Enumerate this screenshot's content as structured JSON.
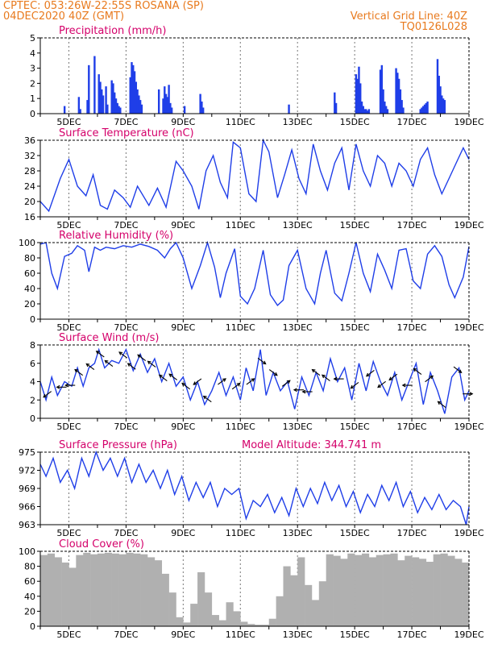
{
  "header": {
    "title_left": "CPTEC:   053:26W-22:55S   ROSANA (SP)",
    "date_left": "04DEC2020 40Z (GMT)",
    "grid_right": "Vertical Grid Line: 40Z",
    "code_right": "TQ0126L028"
  },
  "colors": {
    "header": "#e87a1e",
    "panel_title": "#d4006a",
    "series": "#1f3ee8",
    "cloud": "#b0b0b0",
    "arrows": "#000000"
  },
  "x_tick_labels": [
    "5DEC",
    "7DEC",
    "9DEC",
    "11DEC",
    "13DEC",
    "15DEC",
    "17DEC",
    "19DEC"
  ],
  "chart_data": [
    {
      "type": "bar",
      "title": "Precipitation (mm/h)",
      "ylim": [
        0,
        5
      ],
      "yticks": [
        "0",
        "1",
        "2",
        "3",
        "4",
        "5"
      ],
      "x": [
        4.85,
        5.35,
        5.4,
        5.65,
        5.7,
        5.9,
        6.05,
        6.1,
        6.15,
        6.2,
        6.3,
        6.35,
        6.5,
        6.55,
        6.6,
        6.65,
        6.7,
        6.75,
        6.8,
        7.15,
        7.2,
        7.25,
        7.3,
        7.35,
        7.4,
        7.45,
        7.5,
        7.55,
        8.15,
        8.3,
        8.35,
        8.4,
        8.45,
        8.5,
        8.55,
        8.6,
        9.05,
        9.6,
        9.65,
        9.7,
        12.7,
        14.3,
        14.35,
        15.05,
        15.1,
        15.15,
        15.2,
        15.25,
        15.3,
        15.35,
        15.4,
        15.45,
        15.5,
        15.9,
        15.95,
        16.0,
        16.05,
        16.1,
        16.15,
        16.45,
        16.5,
        16.55,
        16.6,
        16.65,
        16.7,
        17.3,
        17.35,
        17.4,
        17.45,
        17.5,
        17.55,
        17.9,
        17.95,
        18.0,
        18.05,
        18.1,
        18.15
      ],
      "values": [
        0.5,
        1.1,
        0.3,
        0.9,
        3.2,
        3.8,
        2.6,
        2.1,
        1.6,
        1.2,
        1.8,
        0.6,
        2.2,
        2.0,
        1.4,
        1.0,
        0.7,
        0.5,
        0.4,
        2.4,
        3.4,
        3.2,
        2.8,
        2.1,
        1.6,
        1.2,
        0.9,
        0.6,
        1.6,
        1.0,
        1.8,
        1.3,
        1.1,
        1.9,
        0.7,
        0.4,
        0.5,
        1.3,
        0.8,
        0.4,
        0.6,
        1.4,
        0.7,
        2.6,
        2.3,
        3.1,
        2.0,
        0.8,
        0.5,
        0.3,
        0.3,
        0.2,
        0.3,
        2.9,
        3.2,
        1.6,
        0.8,
        0.5,
        0.3,
        3.0,
        2.7,
        2.3,
        1.6,
        0.9,
        0.4,
        0.3,
        0.4,
        0.5,
        0.6,
        0.7,
        0.8,
        3.6,
        2.5,
        1.8,
        1.2,
        1.0,
        0.9
      ]
    },
    {
      "type": "line",
      "title": "Surface Temperature (nC)",
      "ylim": [
        16,
        36
      ],
      "yticks": [
        "16",
        "20",
        "24",
        "28",
        "32",
        "36"
      ],
      "series": [
        {
          "x": [
            4.0,
            4.3,
            4.7,
            5.0,
            5.3,
            5.6,
            5.85,
            6.1,
            6.35,
            6.6,
            6.9,
            7.15,
            7.4,
            7.8,
            8.1,
            8.4,
            8.75,
            9.0,
            9.3,
            9.55,
            9.8,
            10.05,
            10.3,
            10.55,
            10.75,
            11.0,
            11.3,
            11.55,
            11.8,
            12.0,
            12.3,
            12.55,
            12.8,
            13.05,
            13.3,
            13.55,
            13.8,
            14.05,
            14.3,
            14.55,
            14.8,
            15.05,
            15.3,
            15.55,
            15.8,
            16.05,
            16.3,
            16.55,
            16.8,
            17.05,
            17.3,
            17.55,
            17.8,
            18.05,
            18.3,
            18.55,
            18.8,
            19.0
          ],
          "y": [
            20,
            17.5,
            26,
            31,
            24,
            21.5,
            27,
            19,
            18,
            23,
            21,
            18.5,
            24,
            19,
            23.5,
            18.5,
            30.5,
            28,
            24,
            18,
            28,
            32,
            25,
            21,
            35.5,
            34,
            22,
            20,
            36,
            33,
            21,
            27,
            33.5,
            26,
            22,
            35,
            28,
            23,
            30,
            34,
            23,
            35,
            28,
            24,
            32,
            30,
            24,
            30,
            28,
            24,
            31,
            34,
            27,
            22,
            26,
            30,
            34,
            31
          ]
        }
      ]
    },
    {
      "type": "line",
      "title": "Relative Humidity (%)",
      "ylim": [
        0,
        100
      ],
      "yticks": [
        "0",
        "20",
        "40",
        "60",
        "80",
        "100"
      ],
      "series": [
        {
          "x": [
            4.0,
            4.2,
            4.4,
            4.6,
            4.85,
            5.1,
            5.3,
            5.55,
            5.7,
            5.9,
            6.1,
            6.3,
            6.6,
            6.9,
            7.2,
            7.5,
            7.8,
            8.1,
            8.35,
            8.55,
            8.75,
            9.0,
            9.3,
            9.6,
            9.85,
            10.1,
            10.3,
            10.5,
            10.8,
            11.0,
            11.25,
            11.5,
            11.8,
            12.05,
            12.3,
            12.5,
            12.7,
            13.0,
            13.3,
            13.6,
            13.8,
            14.0,
            14.3,
            14.55,
            14.8,
            15.05,
            15.3,
            15.55,
            15.8,
            16.05,
            16.3,
            16.55,
            16.8,
            17.05,
            17.3,
            17.55,
            17.8,
            18.05,
            18.3,
            18.5,
            18.8,
            19.0
          ],
          "y": [
            98,
            100,
            60,
            40,
            82,
            86,
            96,
            90,
            62,
            94,
            90,
            94,
            92,
            96,
            94,
            98,
            95,
            90,
            80,
            92,
            100,
            80,
            40,
            70,
            100,
            68,
            28,
            60,
            92,
            30,
            20,
            40,
            90,
            32,
            18,
            25,
            70,
            90,
            40,
            20,
            60,
            90,
            34,
            24,
            60,
            100,
            60,
            36,
            85,
            64,
            40,
            90,
            92,
            50,
            40,
            85,
            96,
            82,
            45,
            28,
            55,
            95
          ]
        }
      ]
    },
    {
      "type": "line",
      "title": "Surface Wind (m/s)",
      "ylim": [
        0,
        8
      ],
      "yticks": [
        "0",
        "2",
        "4",
        "6",
        "8"
      ],
      "series": [
        {
          "x": [
            4.0,
            4.2,
            4.4,
            4.6,
            4.85,
            5.1,
            5.3,
            5.5,
            5.7,
            5.9,
            6.05,
            6.25,
            6.5,
            6.75,
            7.0,
            7.25,
            7.5,
            7.75,
            8.0,
            8.25,
            8.5,
            8.75,
            9.0,
            9.25,
            9.5,
            9.75,
            10.0,
            10.25,
            10.5,
            10.75,
            11.0,
            11.2,
            11.45,
            11.7,
            11.9,
            12.15,
            12.4,
            12.65,
            12.9,
            13.15,
            13.4,
            13.65,
            13.9,
            14.15,
            14.4,
            14.65,
            14.9,
            15.15,
            15.4,
            15.65,
            15.9,
            16.15,
            16.4,
            16.65,
            16.9,
            17.15,
            17.4,
            17.65,
            17.9,
            18.15,
            18.4,
            18.65,
            18.85,
            19.0
          ],
          "y": [
            4,
            2,
            4.5,
            2.5,
            4,
            3.5,
            5.5,
            3.5,
            5.5,
            6,
            7.5,
            5.5,
            6.3,
            6,
            7.5,
            5.2,
            7,
            5,
            6.5,
            4,
            6,
            3.5,
            4.5,
            2,
            4,
            1.5,
            3,
            5,
            2.5,
            4.5,
            2,
            5.5,
            3,
            7.5,
            2.5,
            5,
            3,
            4,
            1,
            4.5,
            2.5,
            5,
            3,
            6.5,
            4,
            5.5,
            2,
            6,
            3,
            6.2,
            4,
            2.5,
            5,
            2,
            4,
            6,
            1.5,
            5,
            3,
            0.5,
            4.5,
            5.5,
            2,
            3
          ]
        }
      ],
      "arrows": [
        {
          "x": 4.25,
          "dir": "down-left"
        },
        {
          "x": 4.75,
          "dir": "left"
        },
        {
          "x": 5.05,
          "dir": "left"
        },
        {
          "x": 5.35,
          "dir": "up-left"
        },
        {
          "x": 5.75,
          "dir": "up-left"
        },
        {
          "x": 6.1,
          "dir": "up-left"
        },
        {
          "x": 6.4,
          "dir": "up-left"
        },
        {
          "x": 6.9,
          "dir": "up-left"
        },
        {
          "x": 7.2,
          "dir": "up-left"
        },
        {
          "x": 7.55,
          "dir": "up-left"
        },
        {
          "x": 7.9,
          "dir": "up-left"
        },
        {
          "x": 8.3,
          "dir": "up-left"
        },
        {
          "x": 8.65,
          "dir": "up-left"
        },
        {
          "x": 9.1,
          "dir": "up-left"
        },
        {
          "x": 9.5,
          "dir": "down-left"
        },
        {
          "x": 9.85,
          "dir": "up-left"
        },
        {
          "x": 10.35,
          "dir": "up-right"
        },
        {
          "x": 10.85,
          "dir": "up-right"
        },
        {
          "x": 11.35,
          "dir": "up-right"
        },
        {
          "x": 11.75,
          "dir": "down-right"
        },
        {
          "x": 12.15,
          "dir": "down-right"
        },
        {
          "x": 12.6,
          "dir": "up-right"
        },
        {
          "x": 13.05,
          "dir": "left"
        },
        {
          "x": 13.35,
          "dir": "left"
        },
        {
          "x": 13.65,
          "dir": "up-left"
        },
        {
          "x": 14.0,
          "dir": "up-left"
        },
        {
          "x": 14.45,
          "dir": "left"
        },
        {
          "x": 15.0,
          "dir": "down-left"
        },
        {
          "x": 15.55,
          "dir": "down-left"
        },
        {
          "x": 15.95,
          "dir": "down-left"
        },
        {
          "x": 16.35,
          "dir": "down-left"
        },
        {
          "x": 16.85,
          "dir": "left"
        },
        {
          "x": 17.2,
          "dir": "up-left"
        },
        {
          "x": 17.6,
          "dir": "up-right"
        },
        {
          "x": 18.05,
          "dir": "up-left"
        },
        {
          "x": 18.6,
          "dir": "down-right"
        },
        {
          "x": 18.95,
          "dir": "right"
        }
      ]
    },
    {
      "type": "line",
      "title": "Surface Pressure (hPa)",
      "subtitle": "Model Altitude: 344.741 m",
      "ylim": [
        963,
        975
      ],
      "yticks": [
        "963",
        "966",
        "969",
        "972",
        "975"
      ],
      "series": [
        {
          "x": [
            4.0,
            4.2,
            4.45,
            4.7,
            4.95,
            5.2,
            5.45,
            5.7,
            5.95,
            6.2,
            6.45,
            6.7,
            6.95,
            7.2,
            7.45,
            7.7,
            7.95,
            8.2,
            8.45,
            8.7,
            8.95,
            9.2,
            9.45,
            9.7,
            9.95,
            10.2,
            10.45,
            10.7,
            10.95,
            11.2,
            11.45,
            11.7,
            11.95,
            12.2,
            12.45,
            12.7,
            12.95,
            13.2,
            13.45,
            13.7,
            13.95,
            14.2,
            14.45,
            14.7,
            14.95,
            15.2,
            15.45,
            15.7,
            15.95,
            16.2,
            16.45,
            16.7,
            16.95,
            17.2,
            17.45,
            17.7,
            17.95,
            18.2,
            18.45,
            18.7,
            18.9,
            19.0
          ],
          "y": [
            973,
            971,
            974,
            970,
            972,
            969,
            974,
            971,
            975,
            972,
            974,
            971,
            974,
            970,
            973,
            970,
            972,
            969,
            972,
            968,
            971,
            967,
            970,
            967.5,
            970,
            966,
            969,
            968,
            969,
            964,
            967,
            966,
            968,
            965,
            967.5,
            964.5,
            969,
            966,
            969,
            966.5,
            970,
            967,
            969.5,
            966,
            968.5,
            965,
            968,
            966,
            969.5,
            967,
            970,
            966,
            968.5,
            965,
            967.5,
            965.5,
            968,
            965.5,
            967,
            966,
            963,
            966
          ]
        }
      ]
    },
    {
      "type": "bar",
      "title": "Cloud Cover (%)",
      "ylim": [
        0,
        100
      ],
      "yticks": [
        "0",
        "20",
        "40",
        "60",
        "80",
        "100"
      ],
      "x": [
        4.0,
        4.25,
        4.5,
        4.75,
        5.0,
        5.25,
        5.5,
        5.75,
        6.0,
        6.25,
        6.5,
        6.75,
        7.0,
        7.25,
        7.5,
        7.75,
        8.0,
        8.25,
        8.5,
        8.75,
        9.0,
        9.25,
        9.5,
        9.75,
        10.0,
        10.25,
        10.5,
        10.75,
        11.0,
        11.25,
        11.5,
        11.75,
        12.0,
        12.25,
        12.5,
        12.75,
        13.0,
        13.25,
        13.5,
        13.75,
        14.0,
        14.25,
        14.5,
        14.75,
        15.0,
        15.25,
        15.5,
        15.75,
        16.0,
        16.25,
        16.5,
        16.75,
        17.0,
        17.25,
        17.5,
        17.75,
        18.0,
        18.25,
        18.5,
        18.75
      ],
      "values": [
        95,
        97,
        92,
        85,
        78,
        95,
        98,
        96,
        97,
        98,
        97,
        96,
        98,
        97,
        96,
        92,
        88,
        70,
        45,
        12,
        5,
        30,
        72,
        45,
        15,
        8,
        32,
        20,
        6,
        3,
        2,
        2,
        10,
        40,
        80,
        68,
        92,
        55,
        35,
        60,
        96,
        94,
        90,
        97,
        95,
        97,
        92,
        95,
        96,
        97,
        88,
        94,
        92,
        90,
        86,
        96,
        97,
        94,
        90,
        85
      ]
    }
  ]
}
